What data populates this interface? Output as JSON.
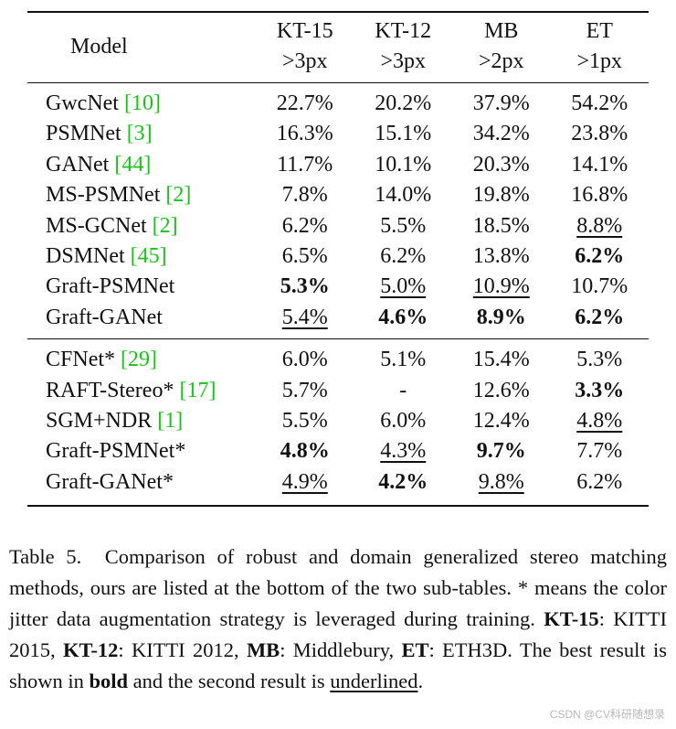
{
  "table": {
    "header": {
      "model": "Model",
      "columns": [
        {
          "dataset": "KT-15",
          "threshold": ">3px"
        },
        {
          "dataset": "KT-12",
          "threshold": ">3px"
        },
        {
          "dataset": "MB",
          "threshold": ">2px"
        },
        {
          "dataset": "ET",
          "threshold": ">1px"
        }
      ]
    },
    "section1": [
      {
        "name": "GwcNet ",
        "ref": "[10]",
        "cells": [
          {
            "v": "22.7%"
          },
          {
            "v": "20.2%"
          },
          {
            "v": "37.9%"
          },
          {
            "v": "54.2%"
          }
        ]
      },
      {
        "name": "PSMNet ",
        "ref": "[3]",
        "cells": [
          {
            "v": "16.3%"
          },
          {
            "v": "15.1%"
          },
          {
            "v": "34.2%"
          },
          {
            "v": "23.8%"
          }
        ]
      },
      {
        "name": "GANet ",
        "ref": "[44]",
        "cells": [
          {
            "v": "11.7%"
          },
          {
            "v": "10.1%"
          },
          {
            "v": "20.3%"
          },
          {
            "v": "14.1%"
          }
        ]
      },
      {
        "name": "MS-PSMNet ",
        "ref": "[2]",
        "cells": [
          {
            "v": "7.8%"
          },
          {
            "v": "14.0%"
          },
          {
            "v": "19.8%"
          },
          {
            "v": "16.8%"
          }
        ]
      },
      {
        "name": "MS-GCNet ",
        "ref": "[2]",
        "cells": [
          {
            "v": "6.2%"
          },
          {
            "v": "5.5%"
          },
          {
            "v": "18.5%"
          },
          {
            "v": "8.8%",
            "u": true
          }
        ]
      },
      {
        "name": "DSMNet ",
        "ref": "[45]",
        "cells": [
          {
            "v": "6.5%"
          },
          {
            "v": "6.2%"
          },
          {
            "v": "13.8%"
          },
          {
            "v": "6.2%",
            "b": true
          }
        ]
      },
      {
        "name": "Graft-PSMNet",
        "ref": "",
        "cells": [
          {
            "v": "5.3%",
            "b": true
          },
          {
            "v": "5.0%",
            "u": true
          },
          {
            "v": "10.9%",
            "u": true
          },
          {
            "v": "10.7%"
          }
        ]
      },
      {
        "name": "Graft-GANet",
        "ref": "",
        "cells": [
          {
            "v": "5.4%",
            "u": true
          },
          {
            "v": "4.6%",
            "b": true
          },
          {
            "v": "8.9%",
            "b": true
          },
          {
            "v": "6.2%",
            "b": true
          }
        ]
      }
    ],
    "section2": [
      {
        "name": "CFNet* ",
        "ref": "[29]",
        "cells": [
          {
            "v": "6.0%"
          },
          {
            "v": "5.1%"
          },
          {
            "v": "15.4%"
          },
          {
            "v": "5.3%"
          }
        ]
      },
      {
        "name": "RAFT-Stereo* ",
        "ref": "[17]",
        "cells": [
          {
            "v": "5.7%"
          },
          {
            "v": "-"
          },
          {
            "v": "12.6%"
          },
          {
            "v": "3.3%",
            "b": true
          }
        ]
      },
      {
        "name": "SGM+NDR ",
        "ref": "[1]",
        "cells": [
          {
            "v": "5.5%"
          },
          {
            "v": "6.0%"
          },
          {
            "v": "12.4%"
          },
          {
            "v": "4.8%",
            "u": true
          }
        ]
      },
      {
        "name": "Graft-PSMNet*",
        "ref": "",
        "cells": [
          {
            "v": "4.8%",
            "b": true
          },
          {
            "v": "4.3%",
            "u": true
          },
          {
            "v": "9.7%",
            "b": true
          },
          {
            "v": "7.7%"
          }
        ]
      },
      {
        "name": "Graft-GANet*",
        "ref": "",
        "cells": [
          {
            "v": "4.9%",
            "u": true
          },
          {
            "v": "4.2%",
            "b": true
          },
          {
            "v": "9.8%",
            "u": true
          },
          {
            "v": "6.2%"
          }
        ]
      }
    ]
  },
  "caption": {
    "label": "Table 5.",
    "text1": "Comparison of robust and domain generalized stereo matching methods, ours are listed at the bottom of the two sub-tables. * means the color jitter data augmentation strategy is leveraged during training.",
    "abbr": [
      {
        "key": "KT-15",
        "value": ": KITTI 2015, "
      },
      {
        "key": "KT-12",
        "value": ": KITTI 2012, "
      },
      {
        "key": "MB",
        "value": ": Middlebury, "
      },
      {
        "key": "ET",
        "value": ": ETH3D."
      }
    ],
    "text2": " The best result is shown in ",
    "bold_word": "bold",
    "text3": " and the second result is ",
    "underline_word": "underlined",
    "text4": "."
  },
  "watermark": "CSDN @CV科研随想录"
}
